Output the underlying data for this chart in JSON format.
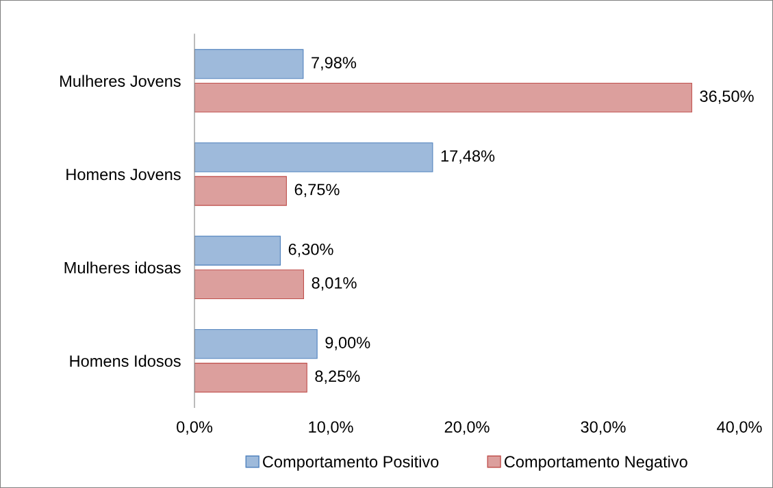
{
  "chart_data": {
    "type": "bar",
    "orientation": "horizontal",
    "categories": [
      "Mulheres Jovens",
      "Homens Jovens",
      "Mulheres idosas",
      "Homens Idosos"
    ],
    "series": [
      {
        "name": "Comportamento Positivo",
        "color": "#4f81bd",
        "values": [
          7.98,
          17.48,
          6.3,
          9.0
        ],
        "value_labels": [
          "7,98%",
          "17,48%",
          "6,30%",
          "9,00%"
        ]
      },
      {
        "name": "Comportamento Negativo",
        "color": "#c0504d",
        "values": [
          36.5,
          6.75,
          8.01,
          8.25
        ],
        "value_labels": [
          "36,50%",
          "6,75%",
          "8,01%",
          "8,25%"
        ]
      }
    ],
    "xlim": [
      0,
      40
    ],
    "xticks": [
      {
        "value": 0,
        "label": "0,0%"
      },
      {
        "value": 10,
        "label": "10,0%"
      },
      {
        "value": 20,
        "label": "20,0%"
      },
      {
        "value": 30,
        "label": "30,0%"
      },
      {
        "value": 40,
        "label": "40,0%"
      }
    ],
    "grid": false,
    "legend": "bottom"
  }
}
